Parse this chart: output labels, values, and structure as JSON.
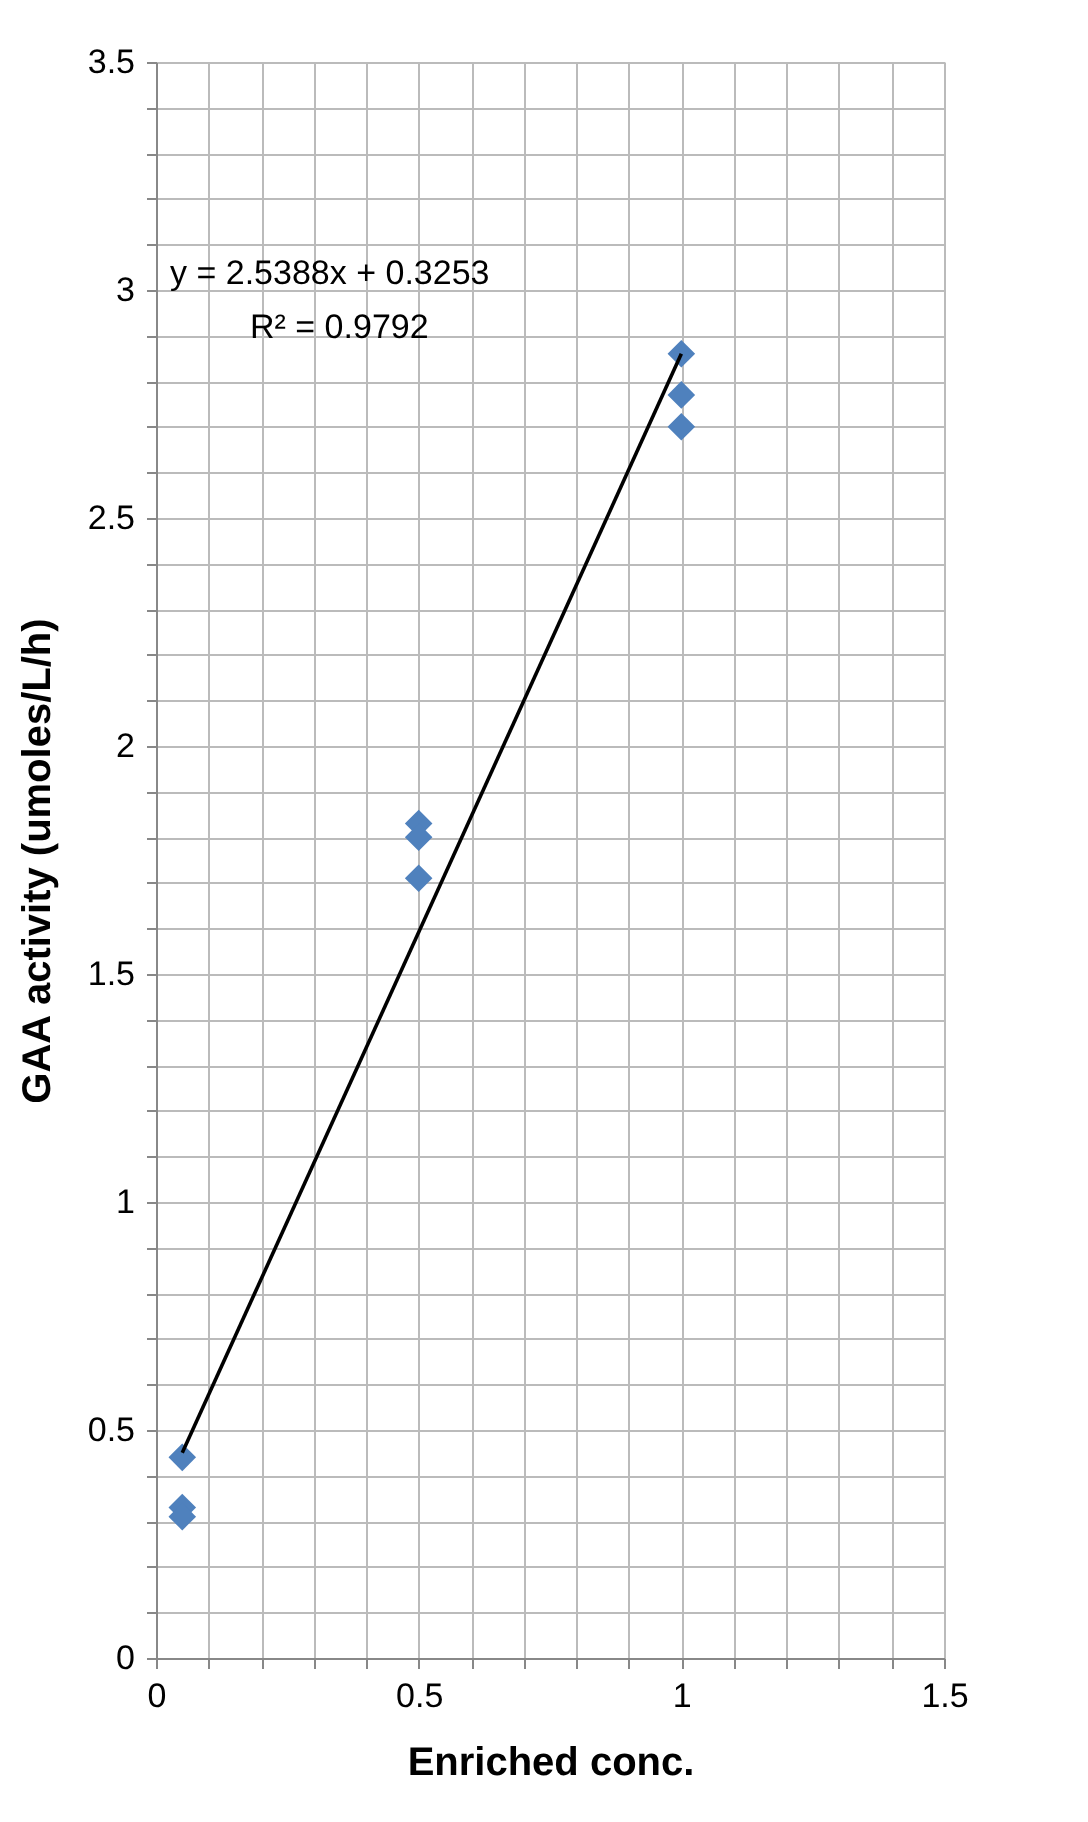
{
  "chart_data": {
    "type": "scatter",
    "xlabel": "Enriched conc.",
    "ylabel": "GAA activity (umoles/L/h)",
    "series": [
      {
        "color": "#4f81bd",
        "marker": "diamond",
        "x": [
          0.05,
          0.05,
          0.05,
          0.5,
          0.5,
          0.5,
          1,
          1,
          1
        ],
        "values": [
          0.44,
          0.33,
          0.31,
          1.83,
          1.8,
          1.71,
          2.86,
          2.77,
          2.7
        ]
      },
      {
        "type": "line",
        "color": "#000000",
        "marker": "none",
        "x": [
          0.05,
          1
        ],
        "values": [
          0.45,
          2.86
        ]
      }
    ],
    "annotations": [
      "y = 2.5388x + 0.3253",
      "R² = 0.9792"
    ],
    "xlim": [
      0,
      1.5
    ],
    "xticks": [
      0,
      0.5,
      1,
      1.5
    ],
    "ylim": [
      0,
      3.5
    ],
    "yticks": [
      0,
      0.5,
      1,
      1.5,
      2,
      2.5,
      3,
      3.5
    ],
    "grid": true
  }
}
